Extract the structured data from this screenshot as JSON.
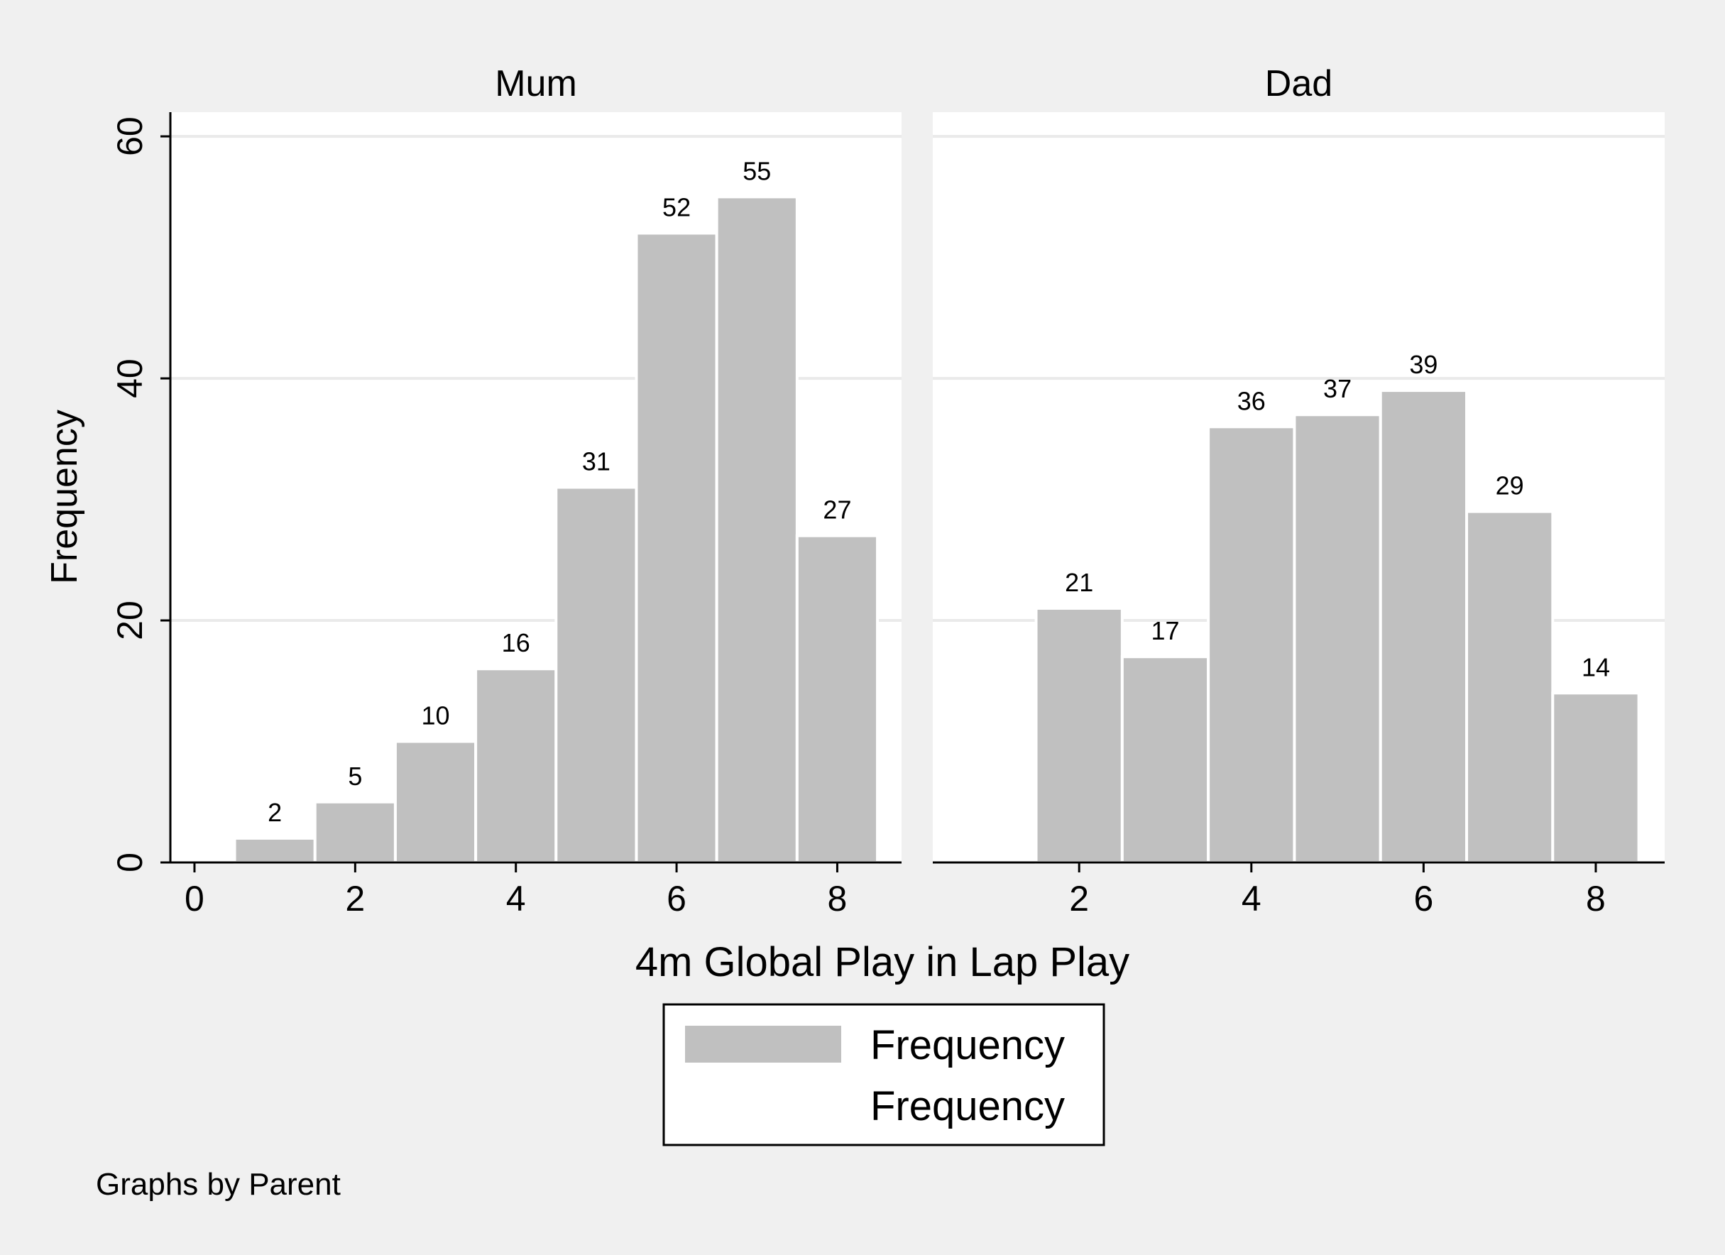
{
  "chart_data": {
    "type": "bar",
    "subtype": "histogram",
    "xlabel": "4m Global Play in Lap Play",
    "ylabel": "Frequency",
    "note": "Graphs by Parent",
    "ylim": [
      0,
      62
    ],
    "yticks": [
      0,
      20,
      40,
      60
    ],
    "gridlines": true,
    "legend": {
      "position": "bottom-center",
      "entries": [
        "Frequency",
        "Frequency"
      ]
    },
    "colors": {
      "bar": "#c0c0c0",
      "bar_edge": "#ffffff",
      "plot_bg": "#ffffff",
      "outer_bg": "#f0f0f0",
      "grid": "#eaeaea"
    },
    "panels": [
      {
        "title": "Mum",
        "xlim": [
          -0.3,
          8.8
        ],
        "xticks": [
          0,
          2,
          4,
          6,
          8
        ],
        "x": [
          1,
          2,
          3,
          4,
          5,
          6,
          7,
          8
        ],
        "values": [
          2,
          5,
          10,
          16,
          31,
          52,
          55,
          27
        ],
        "labels": [
          "2",
          "5",
          "10",
          "16",
          "31",
          "52",
          "55",
          "27"
        ]
      },
      {
        "title": "Dad",
        "xlim": [
          0.3,
          8.8
        ],
        "xticks": [
          2,
          4,
          6,
          8
        ],
        "x": [
          2,
          3,
          4,
          5,
          6,
          7,
          8
        ],
        "values": [
          21,
          17,
          36,
          37,
          39,
          29,
          14
        ],
        "labels": [
          "21",
          "17",
          "36",
          "37",
          "39",
          "29",
          "14"
        ]
      }
    ]
  }
}
